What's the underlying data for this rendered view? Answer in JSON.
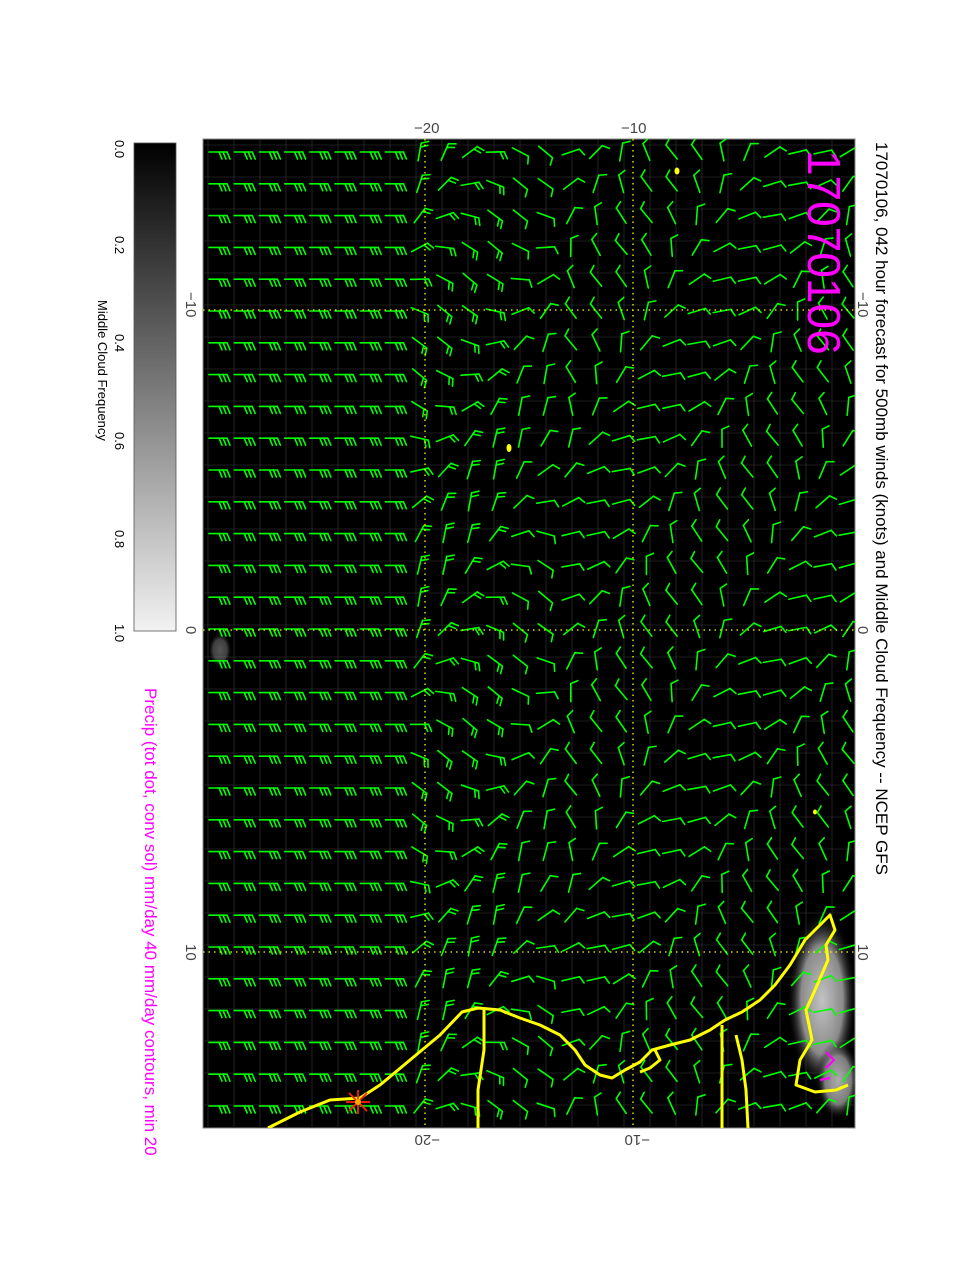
{
  "figure": {
    "title": "17070106, 042 hour forecast for 500mb winds (knots) and Middle Cloud Frequency -- NCEP GFS",
    "date_stamp": "17070106",
    "footer": "Precip (tot dot, conv sol) mm/day 40 mm/day contours, min 20"
  },
  "colorbar": {
    "label": "Middle Cloud Frequency",
    "ticks": [
      "0.0",
      "0.2",
      "0.4",
      "0.6",
      "0.8",
      "1.0"
    ]
  },
  "axes": {
    "top_ticks": [
      "−20",
      "−10"
    ],
    "bottom_ticks": [
      "−20",
      "−10"
    ],
    "left_ticks": [
      "−10",
      "0",
      "10"
    ],
    "right_ticks": [
      "−10",
      "0",
      "10"
    ]
  },
  "colors": {
    "background": "#000000",
    "wind_barbs": "#00ff00",
    "coastline": "#ffff00",
    "gridlines": "#ffff00",
    "title_text": "#000000",
    "date_stamp": "#ff00ff",
    "footer_text": "#ff00ff",
    "precip_marker": "#ff2200"
  }
}
